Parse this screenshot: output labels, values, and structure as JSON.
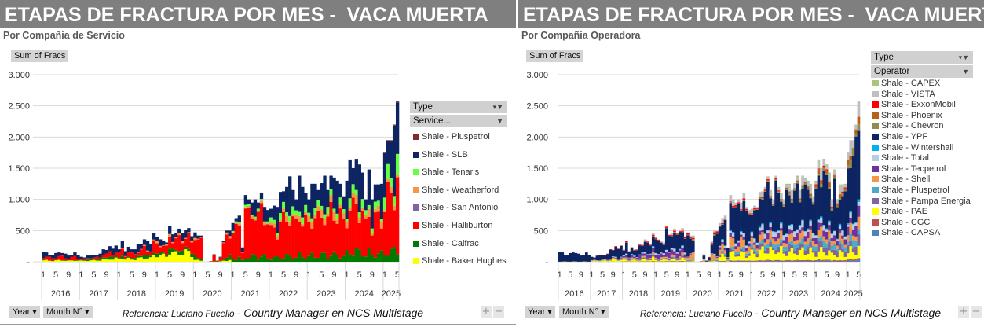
{
  "left": {
    "title": "ETAPAS DE FRACTURA POR MES -  VACA MUERTA",
    "subtitle": "Por Compañia de Servicio",
    "value_field": "Sum of Fracs",
    "legend_field": "Type",
    "legend_filter": "Service...",
    "year_button": "Year ▾",
    "month_button": "Month N° ▾",
    "reference_prefix": "Referencia:  Luciano Fucello ",
    "reference_suffix": "- Country Manager en NCS Multistage",
    "zoom_in": "+",
    "zoom_out": "−"
  },
  "right": {
    "title": "ETAPAS DE FRACTURA POR MES -  VACA MUERTA",
    "subtitle": "Por Compañia Operadora",
    "value_field": "Sum of Fracs",
    "legend_field": "Type",
    "legend_filter": "Operator",
    "year_button": "Year ▾",
    "month_button": "Month N° ▾",
    "reference_prefix": "Referencia:  Luciano Fucello ",
    "reference_suffix": "- Country Manager en NCS Multistage",
    "zoom_in": "+",
    "zoom_out": "−"
  },
  "chart_data": [
    {
      "type": "bar",
      "stacked": true,
      "title": "ETAPAS DE FRACTURA POR MES -  VACA MUERTA",
      "subtitle": "Por Compañia de Servicio",
      "ylabel": "Sum of Fracs",
      "ylim": [
        0,
        3000
      ],
      "yticks": [
        "-",
        "500",
        "1.000",
        "1.500",
        "2.000",
        "2.500",
        "3.000"
      ],
      "years": [
        "2016",
        "2017",
        "2018",
        "2019",
        "2020",
        "2021",
        "2022",
        "2023",
        "2024",
        "2025"
      ],
      "month_ticks": [
        "1",
        "5",
        "9"
      ],
      "legend_position": "right",
      "monthly_totals": [
        160,
        150,
        110,
        110,
        140,
        150,
        140,
        130,
        100,
        110,
        150,
        110,
        80,
        70,
        100,
        110,
        110,
        110,
        130,
        200,
        190,
        250,
        210,
        260,
        200,
        340,
        170,
        240,
        200,
        200,
        280,
        280,
        360,
        330,
        280,
        460,
        400,
        360,
        330,
        310,
        580,
        440,
        460,
        530,
        460,
        510,
        540,
        410,
        470,
        420,
        420,
        0,
        0,
        10,
        120,
        20,
        80,
        330,
        500,
        500,
        620,
        700,
        740,
        230,
        1070,
        1000,
        950,
        1000,
        950,
        1110,
        880,
        830,
        850,
        900,
        880,
        1120,
        1130,
        1200,
        1370,
        1150,
        1000,
        1380,
        1200,
        1100,
        1000,
        1250,
        1250,
        1150,
        1260,
        1380,
        1150,
        1380,
        1350,
        1300,
        1250,
        1050,
        1300,
        1640,
        1500,
        1650,
        1560,
        1430,
        1000,
        1480,
        1000,
        1240,
        1240,
        1250,
        1750,
        1950,
        1950,
        2200,
        2570
      ],
      "series": [
        {
          "name": "Shale - Baker Hughes",
          "color": "#ffff00",
          "share_by_year": [
            0.15,
            0.2,
            0.2,
            0.3,
            0.05,
            0,
            0,
            0,
            0,
            0
          ]
        },
        {
          "name": "Shale - Calfrac",
          "color": "#007a00",
          "share_by_year": [
            0.05,
            0.15,
            0.12,
            0.1,
            0.1,
            0.08,
            0.07,
            0.08,
            0.1,
            0.08
          ]
        },
        {
          "name": "Shale - Halliburton",
          "color": "#ff0000",
          "share_by_year": [
            0.35,
            0.25,
            0.3,
            0.35,
            0.7,
            0.7,
            0.5,
            0.5,
            0.45,
            0.45
          ]
        },
        {
          "name": "Shale - San Antonio",
          "color": "#8064a2",
          "share_by_year": [
            0,
            0,
            0,
            0,
            0,
            0,
            0.003,
            0,
            0,
            0
          ]
        },
        {
          "name": "Shale - Weatherford",
          "color": "#f79646",
          "share_by_year": [
            0,
            0,
            0.03,
            0.05,
            0.05,
            0.03,
            0.05,
            0.07,
            0.06,
            0.03
          ]
        },
        {
          "name": "Shale - Tenaris",
          "color": "#66ff44",
          "share_by_year": [
            0,
            0,
            0,
            0,
            0,
            0.03,
            0.08,
            0.07,
            0.07,
            0.1
          ]
        },
        {
          "name": "Shale - SLB",
          "color": "#0c2461",
          "share_by_year": [
            0.45,
            0.4,
            0.35,
            0.2,
            0.1,
            0.16,
            0.3,
            0.28,
            0.32,
            0.33
          ]
        },
        {
          "name": "Shale - Pluspetrol",
          "color": "#7b2c2c",
          "share_by_year": [
            0,
            0,
            0,
            0,
            0,
            0,
            0,
            0,
            0,
            0.01
          ]
        }
      ]
    },
    {
      "type": "bar",
      "stacked": true,
      "title": "ETAPAS DE FRACTURA POR MES -  VACA MUERTA",
      "subtitle": "Por Compañia Operadora",
      "ylabel": "Sum of Fracs",
      "ylim": [
        0,
        3000
      ],
      "yticks": [
        "-",
        "500",
        "1.000",
        "1.500",
        "2.000",
        "2.500",
        "3.000"
      ],
      "years": [
        "2016",
        "2017",
        "2018",
        "2019",
        "2020",
        "2021",
        "2022",
        "2023",
        "2024",
        "2025"
      ],
      "month_ticks": [
        "1",
        "5",
        "9"
      ],
      "legend_position": "right",
      "monthly_totals": [
        160,
        150,
        110,
        110,
        140,
        150,
        140,
        130,
        100,
        110,
        150,
        110,
        80,
        70,
        100,
        110,
        110,
        110,
        130,
        200,
        190,
        250,
        210,
        260,
        200,
        340,
        170,
        240,
        200,
        200,
        280,
        280,
        360,
        330,
        280,
        460,
        400,
        360,
        330,
        310,
        580,
        440,
        460,
        530,
        460,
        510,
        540,
        410,
        470,
        420,
        420,
        0,
        0,
        10,
        120,
        20,
        80,
        330,
        500,
        500,
        620,
        700,
        740,
        230,
        1070,
        1000,
        950,
        1000,
        950,
        1110,
        880,
        830,
        850,
        900,
        880,
        1120,
        1130,
        1200,
        1370,
        1150,
        1000,
        1380,
        1200,
        1100,
        1000,
        1250,
        1250,
        1150,
        1260,
        1380,
        1150,
        1380,
        1350,
        1300,
        1250,
        1050,
        1300,
        1640,
        1500,
        1650,
        1560,
        1430,
        1000,
        1480,
        1000,
        1240,
        1240,
        1250,
        1750,
        1950,
        1950,
        2200,
        2570
      ],
      "series": [
        {
          "name": "Shale - CAPSA",
          "color": "#4f81bd",
          "share_by_year": [
            0,
            0.01,
            0.01,
            0.01,
            0.01,
            0.01,
            0.01,
            0.01,
            0.01,
            0.01
          ]
        },
        {
          "name": "Shale - CGC",
          "color": "#c0504d",
          "share_by_year": [
            0,
            0,
            0.01,
            0.01,
            0,
            0.01,
            0.01,
            0.01,
            0.01,
            0.01
          ]
        },
        {
          "name": "Shale - PAE",
          "color": "#ffff00",
          "share_by_year": [
            0.02,
            0.1,
            0.08,
            0.05,
            0.02,
            0.1,
            0.12,
            0.1,
            0.08,
            0.06
          ]
        },
        {
          "name": "Shale - Pampa Energia",
          "color": "#8064a2",
          "share_by_year": [
            0,
            0.02,
            0.05,
            0.04,
            0.02,
            0.03,
            0.05,
            0.06,
            0.07,
            0.05
          ]
        },
        {
          "name": "Shale - Pluspetrol",
          "color": "#4bacc6",
          "share_by_year": [
            0,
            0.02,
            0.03,
            0.02,
            0.02,
            0.04,
            0.05,
            0.05,
            0.05,
            0.05
          ]
        },
        {
          "name": "Shale - Shell",
          "color": "#f79646",
          "share_by_year": [
            0,
            0.03,
            0.04,
            0.04,
            0.15,
            0.1,
            0.07,
            0.07,
            0.06,
            0.05
          ]
        },
        {
          "name": "Shale - Tecpetrol",
          "color": "#7030a0",
          "share_by_year": [
            0,
            0.05,
            0.15,
            0.15,
            0.02,
            0.05,
            0.05,
            0.06,
            0.06,
            0.06
          ]
        },
        {
          "name": "Shale - Total",
          "color": "#b8cce4",
          "share_by_year": [
            0,
            0.03,
            0.03,
            0.04,
            0.02,
            0.04,
            0.05,
            0.05,
            0.04,
            0.03
          ]
        },
        {
          "name": "Shale - Wintershall",
          "color": "#00b0f0",
          "share_by_year": [
            0,
            0.01,
            0.02,
            0.01,
            0,
            0.01,
            0.01,
            0.01,
            0.01,
            0.01
          ]
        },
        {
          "name": "Shale - YPF",
          "color": "#0c2461",
          "share_by_year": [
            0.97,
            0.6,
            0.45,
            0.5,
            0.6,
            0.5,
            0.45,
            0.42,
            0.45,
            0.5
          ]
        },
        {
          "name": "Shale - Chevron",
          "color": "#948a54",
          "share_by_year": [
            0,
            0,
            0.01,
            0.01,
            0.03,
            0.01,
            0.01,
            0.02,
            0.02,
            0.04
          ]
        },
        {
          "name": "Shale - Phoenix",
          "color": "#b7621b",
          "share_by_year": [
            0,
            0,
            0,
            0,
            0,
            0,
            0.01,
            0.02,
            0.03,
            0.03
          ]
        },
        {
          "name": "Shale - ExxonMobil",
          "color": "#ff0000",
          "share_by_year": [
            0,
            0.03,
            0.04,
            0.03,
            0.05,
            0.02,
            0.01,
            0,
            0.01,
            0
          ]
        },
        {
          "name": "Shale - VISTA",
          "color": "#bfbfbf",
          "share_by_year": [
            0,
            0,
            0.03,
            0.04,
            0.05,
            0.07,
            0.05,
            0.07,
            0.07,
            0.07
          ]
        },
        {
          "name": "Shale - CAPEX",
          "color": "#a9c47f",
          "share_by_year": [
            0,
            0,
            0,
            0,
            0,
            0,
            0,
            0.01,
            0.01,
            0
          ]
        }
      ]
    }
  ]
}
